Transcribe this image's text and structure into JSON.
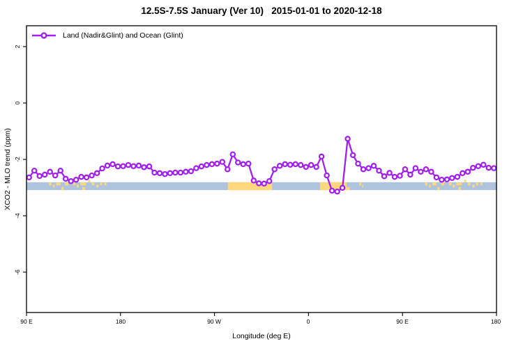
{
  "figure": {
    "title": "12.5S-7.5S January (Ver 10)   2015-01-01 to 2020-12-18"
  },
  "legend": {
    "items": [
      {
        "label": "Land (Nadir&Glint) and Ocean (Glint)",
        "marker": "open-circle-on-line",
        "color": "#A020F0"
      }
    ]
  },
  "axes": {
    "x": {
      "title": "Longitude (deg E)",
      "ticks": [
        {
          "value": 90,
          "label": "90 E"
        },
        {
          "value": 180,
          "label": "180"
        },
        {
          "value": 270,
          "label": "90 W"
        },
        {
          "value": 360,
          "label": "0"
        },
        {
          "value": 450,
          "label": "90 E"
        },
        {
          "value": 540,
          "label": "180"
        }
      ]
    },
    "y": {
      "title": "XCO2 - MLO trend (ppm)",
      "ticks": [
        {
          "value": 2,
          "label": "2"
        },
        {
          "value": 0,
          "label": "0"
        },
        {
          "value": -2,
          "label": "-2"
        },
        {
          "value": -4,
          "label": "-4"
        },
        {
          "value": -6,
          "label": "-6"
        }
      ]
    }
  },
  "colors": {
    "series": "#A020F0",
    "ocean_band": "#AEC3DC",
    "land_band": "#FFD87E",
    "axis": "#000000"
  },
  "chart_data": {
    "type": "line",
    "title": "12.5S-7.5S January (Ver 10)   2015-01-01 to 2020-12-18",
    "xlabel": "Longitude (deg E)",
    "ylabel": "XCO2 - MLO trend (ppm)",
    "xlim": [
      90,
      540
    ],
    "ylim": [
      -7.43,
      2.74
    ],
    "grid": false,
    "legend_position": "top-left",
    "x_tick_values": [
      90,
      180,
      270,
      360,
      450,
      540
    ],
    "x_tick_labels": [
      "90 E",
      "180",
      "90 W",
      "0",
      "90 E",
      "180"
    ],
    "y_tick_values": [
      2,
      0,
      -2,
      -4,
      -6
    ],
    "series": [
      {
        "name": "Land (Nadir&Glint) and Ocean (Glint)",
        "color": "#A020F0",
        "marker": "open-circle",
        "x_start": 92.5,
        "x_step": 5,
        "values": [
          -2.64,
          -2.4,
          -2.59,
          -2.54,
          -2.44,
          -2.57,
          -2.4,
          -2.69,
          -2.77,
          -2.72,
          -2.62,
          -2.64,
          -2.57,
          -2.49,
          -2.32,
          -2.22,
          -2.17,
          -2.25,
          -2.24,
          -2.2,
          -2.24,
          -2.22,
          -2.28,
          -2.25,
          -2.47,
          -2.49,
          -2.52,
          -2.49,
          -2.47,
          -2.47,
          -2.44,
          -2.42,
          -2.31,
          -2.25,
          -2.2,
          -2.17,
          -2.15,
          -2.09,
          -2.35,
          -1.82,
          -2.11,
          -2.17,
          -2.15,
          -2.75,
          -2.85,
          -2.86,
          -2.77,
          -2.35,
          -2.23,
          -2.17,
          -2.19,
          -2.17,
          -2.2,
          -2.27,
          -2.2,
          -2.27,
          -1.9,
          -2.57,
          -3.11,
          -3.14,
          -3.01,
          -1.27,
          -1.85,
          -2.15,
          -2.35,
          -2.31,
          -2.23,
          -2.4,
          -2.6,
          -2.48,
          -2.62,
          -2.58,
          -2.35,
          -2.54,
          -2.31,
          -2.44,
          -2.35,
          -2.44,
          -2.64,
          -2.72,
          -2.71,
          -2.66,
          -2.62,
          -2.49,
          -2.44,
          -2.3,
          -2.24,
          -2.19,
          -2.3,
          -2.31
        ]
      }
    ],
    "surface_band": {
      "description": "ocean/land strip at that latitude",
      "y_range": [
        -2.81,
        -3.09
      ],
      "ocean_color": "#AEC3DC",
      "land_color": "#FFD87E",
      "land_segments": [
        [
          282.8,
          325.1
        ],
        [
          371.0,
          396.5
        ]
      ],
      "land_speckles": [
        [
          111.5,
          114.0,
          "top"
        ],
        [
          115.5,
          117.0,
          "mid"
        ],
        [
          118.5,
          122.5,
          "top"
        ],
        [
          123.5,
          125.5,
          "bottom"
        ],
        [
          127.0,
          130.0,
          "top"
        ],
        [
          131.5,
          133.0,
          "above"
        ],
        [
          134.5,
          137.0,
          "top"
        ],
        [
          138.0,
          140.0,
          "mid"
        ],
        [
          141.5,
          147.0,
          "top"
        ],
        [
          143.5,
          146.0,
          "bottom"
        ],
        [
          149.0,
          151.0,
          "above"
        ],
        [
          152.5,
          155.0,
          "top"
        ],
        [
          157.0,
          159.0,
          "mid"
        ],
        [
          160.5,
          162.5,
          "top"
        ],
        [
          164.5,
          166.5,
          "top"
        ],
        [
          396.5,
          399.5,
          "bottom"
        ],
        [
          408.5,
          410.5,
          "top"
        ],
        [
          411.5,
          412.5,
          "mid"
        ],
        [
          471.5,
          474.0,
          "top"
        ],
        [
          475.5,
          477.0,
          "mid"
        ],
        [
          478.5,
          482.5,
          "top"
        ],
        [
          483.5,
          485.5,
          "bottom"
        ],
        [
          487.0,
          490.0,
          "top"
        ],
        [
          491.5,
          493.0,
          "above"
        ],
        [
          494.5,
          497.0,
          "top"
        ],
        [
          498.0,
          500.0,
          "mid"
        ],
        [
          501.5,
          507.0,
          "top"
        ],
        [
          503.5,
          506.0,
          "bottom"
        ],
        [
          509.0,
          511.0,
          "above"
        ],
        [
          512.5,
          515.0,
          "top"
        ],
        [
          517.0,
          519.0,
          "mid"
        ],
        [
          520.5,
          522.5,
          "top"
        ],
        [
          524.5,
          526.5,
          "top"
        ]
      ]
    }
  }
}
